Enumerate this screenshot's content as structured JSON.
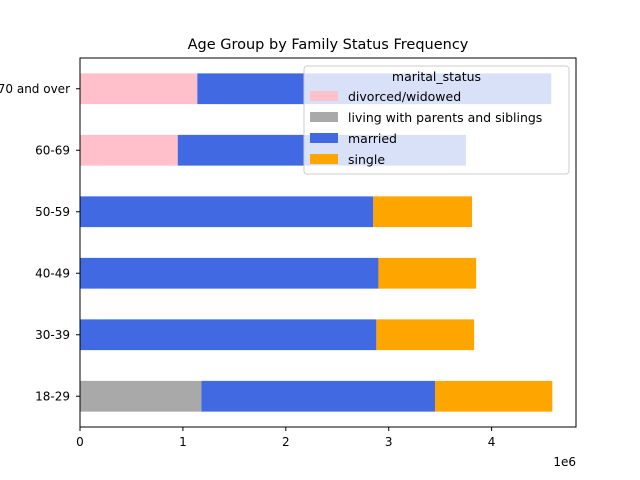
{
  "chart_data": {
    "type": "bar",
    "orientation": "horizontal",
    "stacked": true,
    "title": "Age Group by Family Status Frequency",
    "xlabel": "",
    "ylabel": "",
    "x_offset_label": "1e6",
    "x_ticks": [
      "0",
      "1",
      "2",
      "3",
      "4"
    ],
    "x_tick_values": [
      0,
      1,
      2,
      3,
      4
    ],
    "xlim": [
      0,
      4.82
    ],
    "categories": [
      "18-29",
      "30-39",
      "40-49",
      "50-59",
      "60-69",
      "70 and over"
    ],
    "series": [
      {
        "name": "divorced/widowed",
        "color": "#ffc0cb",
        "values": [
          0,
          0,
          0,
          0,
          0.95,
          1.14
        ]
      },
      {
        "name": "living with parents and siblings",
        "color": "#a9a9a9",
        "values": [
          1.18,
          0,
          0,
          0,
          0,
          0
        ]
      },
      {
        "name": "married",
        "color": "#4169e1",
        "values": [
          2.27,
          2.88,
          2.9,
          2.85,
          2.8,
          3.44
        ]
      },
      {
        "name": "single",
        "color": "#ffa500",
        "values": [
          1.14,
          0.95,
          0.95,
          0.96,
          0,
          0
        ]
      }
    ],
    "legend": {
      "title": "marital_status",
      "placement": "top-right"
    },
    "grid": false
  }
}
